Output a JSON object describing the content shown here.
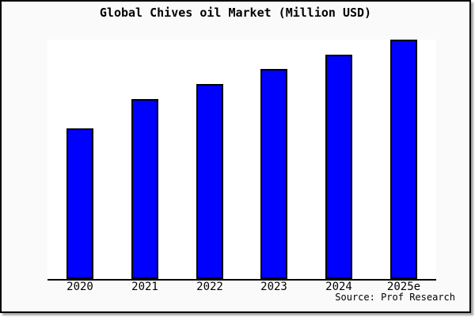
{
  "window": {
    "background": "#fafafa",
    "frame_border_color": "#000000",
    "shadow_color": "#a8a8a8"
  },
  "chart_data": {
    "type": "bar",
    "title": "Global Chives oil Market (Million USD)",
    "categories": [
      "2020",
      "2021",
      "2022",
      "2023",
      "2024",
      "2025e"
    ],
    "values": [
      62.9,
      75.2,
      81.5,
      87.7,
      93.7,
      100.0
    ],
    "value_note": "No y-axis ticks or gridlines are shown; values are relative bar heights indexed so 2025e = 100.",
    "ylim": [
      0,
      100
    ],
    "xlabel": "",
    "ylabel": "",
    "grid": false,
    "legend": false,
    "y_axis_visible": false,
    "bar_color": "#0000ff",
    "bar_edge_color": "#000000",
    "plot_background": "#ffffff",
    "axis_line_color": "#000000",
    "source_label": "Source: Prof Research"
  }
}
